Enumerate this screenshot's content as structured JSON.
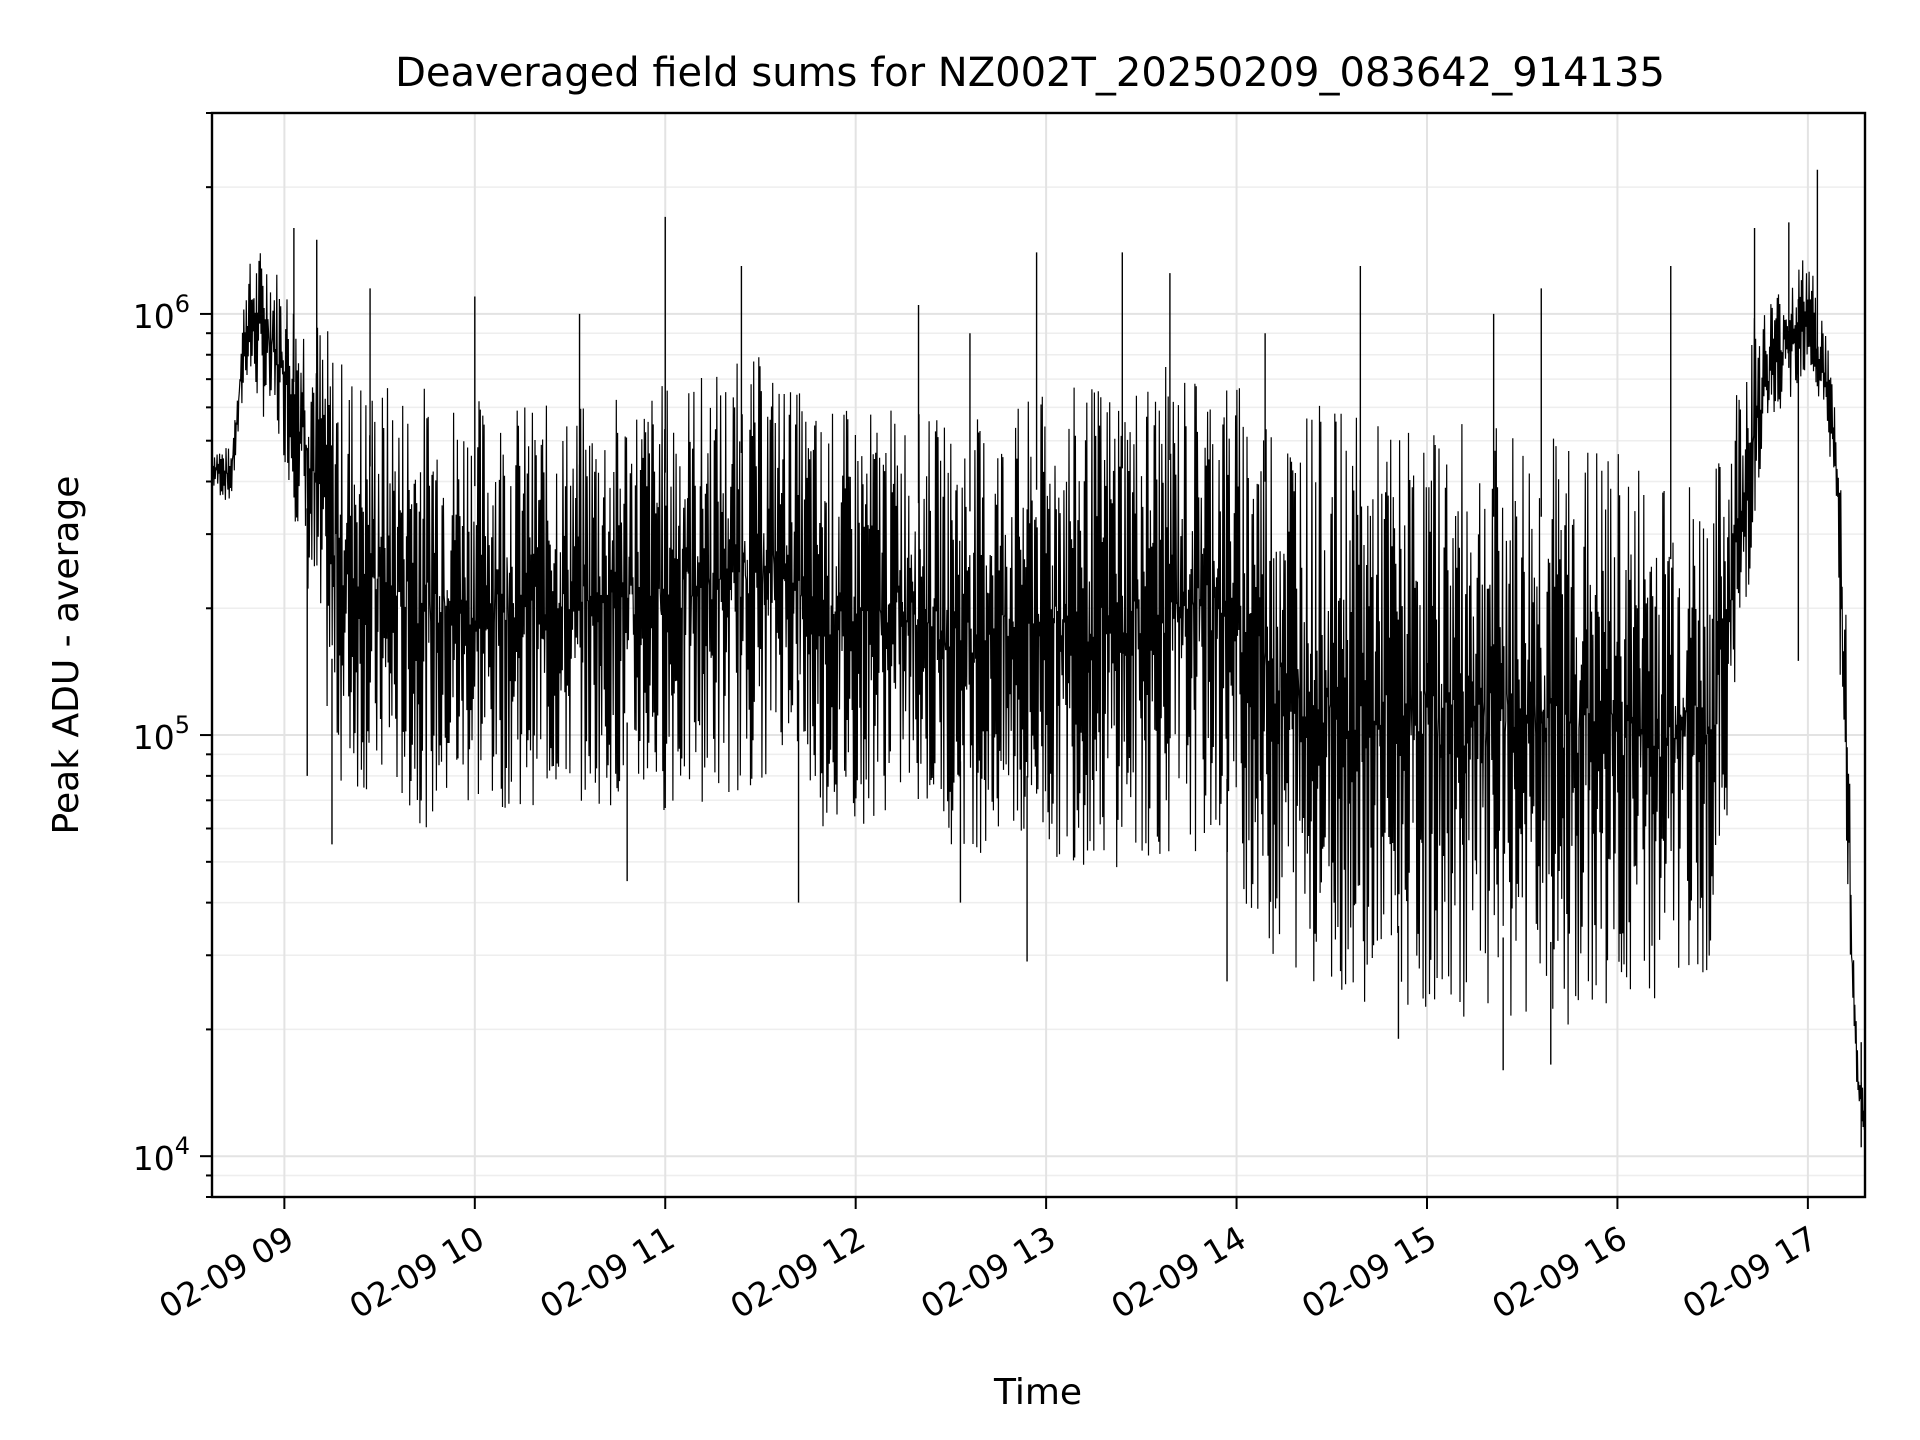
{
  "chart_data": {
    "type": "line",
    "title": "Deaveraged field sums for NZ002T_20250209_083642_914135",
    "xlabel": "Time",
    "ylabel": "Peak ADU - average",
    "yscale": "log",
    "grid": true,
    "x_range_hours": [
      8.62,
      17.3
    ],
    "ylim": [
      8000,
      3000000
    ],
    "x_ticks": [
      {
        "value": 9,
        "label": "02-09 09"
      },
      {
        "value": 10,
        "label": "02-09 10"
      },
      {
        "value": 11,
        "label": "02-09 11"
      },
      {
        "value": 12,
        "label": "02-09 12"
      },
      {
        "value": 13,
        "label": "02-09 13"
      },
      {
        "value": 14,
        "label": "02-09 14"
      },
      {
        "value": 15,
        "label": "02-09 15"
      },
      {
        "value": 16,
        "label": "02-09 16"
      },
      {
        "value": 17,
        "label": "02-09 17"
      }
    ],
    "y_ticks": [
      {
        "value": 10000,
        "base": "10",
        "exp": "4"
      },
      {
        "value": 100000,
        "base": "10",
        "exp": "5"
      },
      {
        "value": 1000000,
        "base": "10",
        "exp": "6"
      }
    ],
    "series": [
      {
        "color": "#000000",
        "x": [
          8.62,
          8.72,
          8.8,
          8.9,
          9.0,
          9.1,
          9.2,
          9.3,
          9.5,
          9.75,
          10.0,
          10.5,
          11.0,
          11.5,
          11.65,
          11.8,
          12.0,
          12.3,
          12.5,
          12.8,
          13.0,
          13.3,
          13.6,
          13.9,
          14.2,
          14.5,
          14.8,
          15.0,
          15.3,
          15.6,
          15.9,
          16.2,
          16.5,
          16.7,
          16.8,
          17.0,
          17.1,
          17.15,
          17.2,
          17.24,
          17.27,
          17.3
        ],
        "upper": [
          500000,
          480000,
          1300000,
          1500000,
          1200000,
          1100000,
          1000000,
          800000,
          700000,
          700000,
          650000,
          600000,
          700000,
          800000,
          700000,
          600000,
          600000,
          600000,
          550000,
          600000,
          650000,
          700000,
          750000,
          750000,
          650000,
          600000,
          550000,
          550000,
          550000,
          550000,
          500000,
          450000,
          400000,
          1000000,
          1100000,
          1400000,
          900000,
          600000,
          300000,
          30000,
          16000,
          14000
        ],
        "lower": [
          380000,
          350000,
          700000,
          550000,
          450000,
          250000,
          120000,
          75000,
          70000,
          60000,
          65000,
          70000,
          65000,
          75000,
          100000,
          60000,
          60000,
          70000,
          55000,
          50000,
          50000,
          48000,
          50000,
          55000,
          28000,
          25000,
          22000,
          22000,
          21000,
          20000,
          21000,
          22000,
          28000,
          250000,
          500000,
          750000,
          500000,
          350000,
          30000,
          18000,
          12000,
          11000
        ],
        "spikes": [
          [
            9.05,
            1600000
          ],
          [
            9.17,
            1500000
          ],
          [
            10.0,
            1100000
          ],
          [
            11.0,
            1700000
          ],
          [
            11.4,
            1300000
          ],
          [
            12.33,
            1050000
          ],
          [
            12.95,
            1400000
          ],
          [
            13.4,
            1400000
          ],
          [
            13.65,
            1250000
          ],
          [
            14.65,
            1300000
          ],
          [
            15.6,
            1150000
          ],
          [
            16.28,
            1300000
          ],
          [
            16.72,
            1600000
          ],
          [
            16.9,
            1650000
          ],
          [
            17.05,
            2200000
          ],
          [
            14.15,
            900000
          ],
          [
            15.35,
            1000000
          ],
          [
            12.6,
            900000
          ],
          [
            10.55,
            1000000
          ],
          [
            9.45,
            1150000
          ]
        ],
        "dips": [
          [
            9.12,
            80000
          ],
          [
            9.25,
            55000
          ],
          [
            12.9,
            29000
          ],
          [
            13.95,
            26000
          ],
          [
            14.85,
            19000
          ],
          [
            15.4,
            16000
          ],
          [
            15.65,
            16500
          ],
          [
            16.95,
            150000
          ],
          [
            17.28,
            10500
          ],
          [
            10.8,
            45000
          ],
          [
            11.7,
            40000
          ],
          [
            12.55,
            40000
          ]
        ]
      }
    ]
  }
}
